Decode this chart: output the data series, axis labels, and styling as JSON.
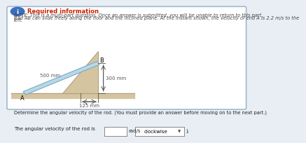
{
  "title_text": "Required information",
  "note_line1": "NOTE: This is a multi-part question. Once an answer is submitted, you will be unable to return to this part.",
  "note_line2": "Rod AB can slide freely along the floor and the inclined plane. At the instant shown, the velocity of end A is 2.2 m/s to the",
  "note_line3": "left.",
  "question_text": "Determine the angular velocity of the rod. (You must provide an answer before moving on to the next part.)",
  "answer_label": "The angular velocity of the rod is",
  "answer_unit": "rad/s",
  "answer_direction": "clockwise",
  "dim_500": "500 mm",
  "dim_300": "300 mm",
  "dim_125": "125 mm",
  "label_A": "A",
  "label_B": "B",
  "bg_color": "#e8eef4",
  "panel_color": "#ffffff",
  "border_color": "#a0b8cc",
  "floor_color": "#d4c5a0",
  "rod_fill": "#b8d8ea",
  "rod_edge": "#7aaac0",
  "incline_fill": "#d4c5a0",
  "incline_edge": "#b0a080",
  "dim_color": "#555555",
  "title_color": "#cc2200",
  "text_color": "#222222",
  "note_color": "#444444"
}
